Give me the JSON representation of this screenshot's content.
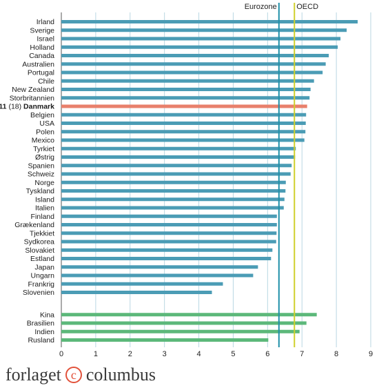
{
  "chart_data": {
    "type": "bar",
    "orientation": "horizontal",
    "xlim": [
      0,
      9
    ],
    "x_ticks": [
      0,
      1,
      2,
      3,
      4,
      5,
      6,
      7,
      8,
      9
    ],
    "grid": "vertical",
    "reference_lines": [
      {
        "label": "Eurozone",
        "value": 6.33,
        "color": "#1f8fa8"
      },
      {
        "label": "OECD",
        "value": 6.78,
        "color": "#cfcf2a"
      }
    ],
    "colors": {
      "default": "#4b9cb5",
      "highlight": "#e8806c",
      "group2": "#5cb87a"
    },
    "groups": [
      {
        "bars": [
          {
            "label": "Irland",
            "value": 8.62
          },
          {
            "label": "Sverige",
            "value": 8.3
          },
          {
            "label": "Israel",
            "value": 8.12
          },
          {
            "label": "Holland",
            "value": 8.04
          },
          {
            "label": "Canada",
            "value": 7.78
          },
          {
            "label": "Australien",
            "value": 7.69
          },
          {
            "label": "Portugal",
            "value": 7.6
          },
          {
            "label": "Chile",
            "value": 7.35
          },
          {
            "label": "New Zealand",
            "value": 7.25
          },
          {
            "label": "Storbritannien",
            "value": 7.22
          },
          {
            "label": "Danmark",
            "rank": "11",
            "rank_note": "(18)",
            "value": 7.15,
            "highlight": true
          },
          {
            "label": "Belgien",
            "value": 7.12
          },
          {
            "label": "USA",
            "value": 7.11
          },
          {
            "label": "Polen",
            "value": 7.1
          },
          {
            "label": "Mexico",
            "value": 7.07
          },
          {
            "label": "Tyrkiet",
            "value": 6.82
          },
          {
            "label": "Østrig",
            "value": 6.8
          },
          {
            "label": "Spanien",
            "value": 6.7
          },
          {
            "label": "Schweiz",
            "value": 6.67
          },
          {
            "label": "Norge",
            "value": 6.53
          },
          {
            "label": "Tyskland",
            "value": 6.52
          },
          {
            "label": "Island",
            "value": 6.49
          },
          {
            "label": "Italien",
            "value": 6.47
          },
          {
            "label": "Finland",
            "value": 6.27
          },
          {
            "label": "Grækenland",
            "value": 6.27
          },
          {
            "label": "Tjekkiet",
            "value": 6.26
          },
          {
            "label": "Sydkorea",
            "value": 6.25
          },
          {
            "label": "Slovakiet",
            "value": 6.14
          },
          {
            "label": "Estland",
            "value": 6.1
          },
          {
            "label": "Japan",
            "value": 5.72
          },
          {
            "label": "Ungarn",
            "value": 5.58
          },
          {
            "label": "Frankrig",
            "value": 4.7
          },
          {
            "label": "Slovenien",
            "value": 4.38
          }
        ]
      },
      {
        "color": "group2",
        "bars": [
          {
            "label": "Kina",
            "value": 7.43
          },
          {
            "label": "Brasilien",
            "value": 7.13
          },
          {
            "label": "Indien",
            "value": 6.93
          },
          {
            "label": "Rusland",
            "value": 6.02
          }
        ]
      }
    ]
  },
  "logo": {
    "left": "forlaget",
    "mark": "c",
    "right": "columbus"
  }
}
